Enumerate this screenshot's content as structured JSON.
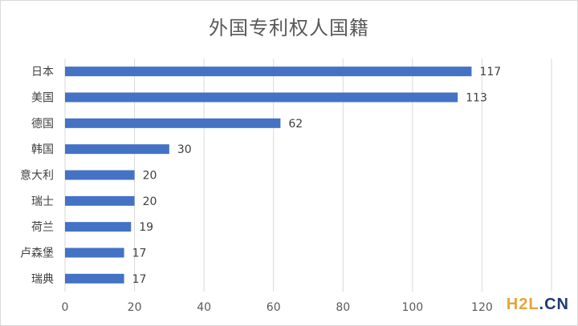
{
  "chart_data": {
    "type": "bar",
    "orientation": "horizontal",
    "title": "外国专利权人国籍",
    "categories": [
      "日本",
      "美国",
      "德国",
      "韩国",
      "意大利",
      "瑞士",
      "荷兰",
      "卢森堡",
      "瑞典"
    ],
    "values": [
      117,
      113,
      62,
      30,
      20,
      20,
      19,
      17,
      17
    ],
    "xlabel": "",
    "ylabel": "",
    "xlim": [
      0,
      140
    ],
    "xticks": [
      0,
      20,
      40,
      60,
      80,
      100,
      120
    ],
    "grid": true,
    "legend": "none",
    "bar_color": "#4472c4"
  },
  "watermark": {
    "part1": "H2L",
    "part2": ".CN"
  }
}
